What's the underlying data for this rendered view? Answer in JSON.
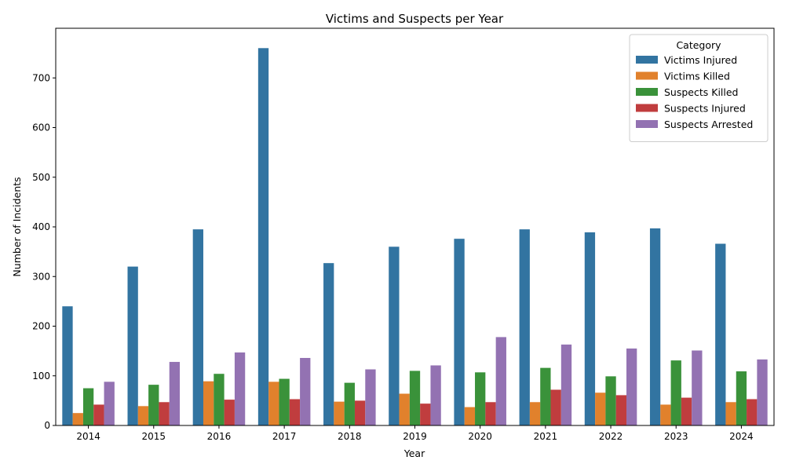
{
  "chart_data": {
    "type": "bar",
    "title": "Victims and Suspects per Year",
    "xlabel": "Year",
    "ylabel": "Number of Incidents",
    "ylim": [
      0,
      800
    ],
    "yticks": [
      0,
      100,
      200,
      300,
      400,
      500,
      600,
      700
    ],
    "grid": false,
    "legend": {
      "title": "Category",
      "placement": "top-right"
    },
    "categories": [
      "2014",
      "2015",
      "2016",
      "2017",
      "2018",
      "2019",
      "2020",
      "2021",
      "2022",
      "2023",
      "2024"
    ],
    "series": [
      {
        "name": "Victims Injured",
        "color": "#3274a1",
        "values": [
          240,
          320,
          395,
          760,
          327,
          360,
          376,
          395,
          389,
          397,
          366
        ]
      },
      {
        "name": "Victims Killed",
        "color": "#e1812c",
        "values": [
          25,
          39,
          89,
          88,
          48,
          64,
          37,
          47,
          66,
          42,
          47
        ]
      },
      {
        "name": "Suspects Killed",
        "color": "#3a923a",
        "values": [
          75,
          82,
          104,
          94,
          86,
          110,
          107,
          116,
          99,
          131,
          109
        ]
      },
      {
        "name": "Suspects Injured",
        "color": "#c03d3e",
        "values": [
          42,
          47,
          52,
          53,
          50,
          44,
          47,
          72,
          61,
          56,
          53
        ]
      },
      {
        "name": "Suspects Arrested",
        "color": "#9372b2",
        "values": [
          88,
          128,
          147,
          136,
          113,
          121,
          178,
          163,
          155,
          151,
          133
        ]
      }
    ]
  }
}
